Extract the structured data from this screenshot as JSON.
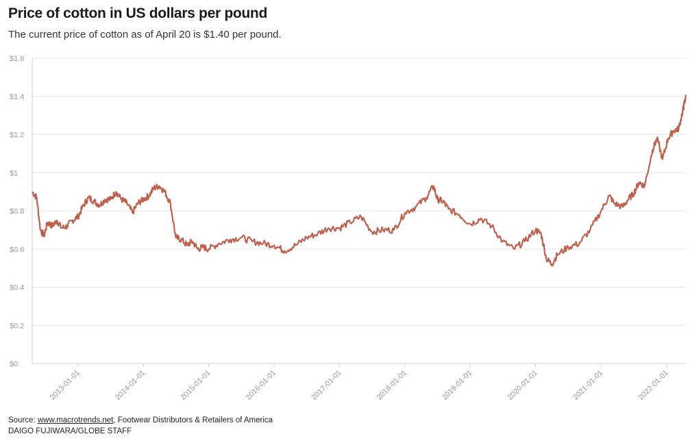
{
  "header": {
    "title": "Price of cotton in US dollars per pound",
    "subtitle": "The current price of cotton as of April 20 is $1.40 per pound."
  },
  "footer": {
    "source_prefix": "Source: ",
    "source_link": "www.macrotrends.net",
    "source_rest": ", Footwear Distributors & Retailers of America",
    "credit": "DAIGO FUJIWARA/GLOBE STAFF"
  },
  "colors": {
    "line": "#c0604c",
    "grid": "#e6e6e6",
    "axis": "#cfcfcf"
  },
  "chart_data": {
    "type": "line",
    "title": "Price of cotton in US dollars per pound",
    "subtitle": "The current price of cotton as of April 20 is $1.40 per pound.",
    "xlabel": "",
    "ylabel": "",
    "ylim": [
      0,
      1.6
    ],
    "xlim": [
      "2012-04-20",
      "2022-04-20"
    ],
    "grid": true,
    "yticks": [
      0,
      0.2,
      0.4,
      0.6,
      0.8,
      1.0,
      1.2,
      1.4,
      1.6
    ],
    "ytick_labels": [
      "$0",
      "$0.2",
      "$0.4",
      "$0.6",
      "$0.8",
      "$1",
      "$1.2",
      "$1.4",
      "$1.6"
    ],
    "xticks": [
      "2013-01-01",
      "2014-01-01",
      "2015-01-01",
      "2016-01-01",
      "2017-01-01",
      "2018-01-01",
      "2019-01-01",
      "2020-01-01",
      "2021-01-01",
      "2022-01-01"
    ],
    "xtick_labels": [
      "2013-01-01",
      "2014-01-01",
      "2015-01-01",
      "2016-01-01",
      "2017-01-01",
      "2018-01-01",
      "2019-01-01",
      "2020-01-01",
      "2021-01-01",
      "2022-01-01"
    ],
    "series": [
      {
        "x": [
          "2012-04-20",
          "2012-05-15",
          "2012-06-05",
          "2012-06-25",
          "2012-07-15",
          "2012-08-10",
          "2012-09-05",
          "2012-10-01",
          "2012-11-01",
          "2012-12-01",
          "2013-01-01",
          "2013-02-01",
          "2013-03-01",
          "2013-04-01",
          "2013-05-01",
          "2013-06-01",
          "2013-07-01",
          "2013-08-01",
          "2013-09-01",
          "2013-10-01",
          "2013-11-01",
          "2013-12-01",
          "2014-01-01",
          "2014-02-01",
          "2014-03-01",
          "2014-04-01",
          "2014-05-01",
          "2014-06-01",
          "2014-07-01",
          "2014-08-01",
          "2014-09-01",
          "2014-10-01",
          "2014-11-01",
          "2014-12-01",
          "2015-01-01",
          "2015-03-01",
          "2015-05-01",
          "2015-07-01",
          "2015-09-01",
          "2015-11-01",
          "2016-01-01",
          "2016-03-01",
          "2016-05-01",
          "2016-07-01",
          "2016-09-01",
          "2016-11-01",
          "2017-01-01",
          "2017-03-01",
          "2017-05-01",
          "2017-07-01",
          "2017-09-01",
          "2017-11-01",
          "2018-01-01",
          "2018-03-01",
          "2018-05-01",
          "2018-06-10",
          "2018-07-01",
          "2018-08-01",
          "2018-09-01",
          "2018-11-01",
          "2019-01-01",
          "2019-03-01",
          "2019-05-01",
          "2019-07-01",
          "2019-09-01",
          "2019-11-01",
          "2020-01-01",
          "2020-02-01",
          "2020-03-01",
          "2020-04-01",
          "2020-05-01",
          "2020-07-01",
          "2020-09-01",
          "2020-11-01",
          "2021-01-01",
          "2021-02-15",
          "2021-03-15",
          "2021-05-01",
          "2021-06-01",
          "2021-07-01",
          "2021-08-01",
          "2021-09-01",
          "2021-10-15",
          "2021-11-10",
          "2021-12-10",
          "2022-01-10",
          "2022-02-10",
          "2022-03-10",
          "2022-04-01",
          "2022-04-10",
          "2022-04-20"
        ],
        "y": [
          0.9,
          0.87,
          0.7,
          0.67,
          0.74,
          0.72,
          0.75,
          0.71,
          0.72,
          0.75,
          0.77,
          0.83,
          0.87,
          0.85,
          0.83,
          0.86,
          0.86,
          0.9,
          0.86,
          0.84,
          0.79,
          0.84,
          0.86,
          0.88,
          0.92,
          0.93,
          0.9,
          0.84,
          0.66,
          0.65,
          0.62,
          0.64,
          0.6,
          0.61,
          0.6,
          0.63,
          0.65,
          0.66,
          0.64,
          0.63,
          0.62,
          0.59,
          0.62,
          0.66,
          0.68,
          0.71,
          0.71,
          0.74,
          0.77,
          0.69,
          0.7,
          0.7,
          0.79,
          0.82,
          0.87,
          0.93,
          0.86,
          0.85,
          0.81,
          0.78,
          0.73,
          0.76,
          0.72,
          0.64,
          0.6,
          0.64,
          0.7,
          0.68,
          0.55,
          0.52,
          0.57,
          0.61,
          0.63,
          0.7,
          0.8,
          0.88,
          0.84,
          0.82,
          0.86,
          0.89,
          0.95,
          0.93,
          1.12,
          1.18,
          1.07,
          1.18,
          1.22,
          1.23,
          1.32,
          1.36,
          1.4
        ]
      }
    ]
  }
}
